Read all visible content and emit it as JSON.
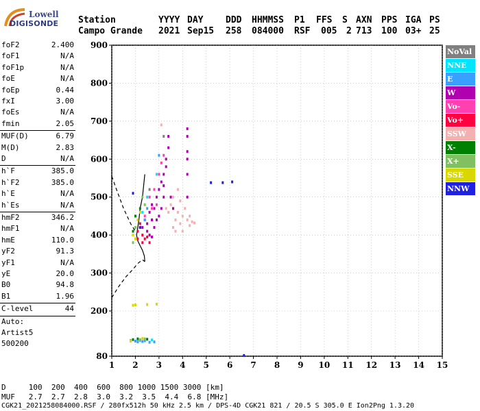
{
  "logo": {
    "line1": "Lowell",
    "line2": "DIGISONDE"
  },
  "header": {
    "labels": [
      "Station",
      "YYYY",
      "DAY",
      "DDD",
      "HHMMSS",
      "P1",
      "FFS",
      "S",
      "AXN",
      "PPS",
      "IGA",
      "PS"
    ],
    "values": [
      "Campo Grande",
      "2021",
      "Sep15",
      "258",
      "084000",
      "RSF",
      "005",
      "2",
      "713",
      "100",
      "03+",
      "25"
    ]
  },
  "params": [
    {
      "label": "foF2",
      "value": "2.400"
    },
    {
      "label": "foF1",
      "value": "N/A"
    },
    {
      "label": "foF1p",
      "value": "N/A"
    },
    {
      "label": "foE",
      "value": "N/A"
    },
    {
      "label": "foEp",
      "value": "0.44"
    },
    {
      "label": "fxI",
      "value": "3.00"
    },
    {
      "label": "foEs",
      "value": "N/A"
    },
    {
      "label": "fmin",
      "value": "2.05"
    },
    {
      "label": "MUF(D)",
      "value": "6.79",
      "sep": true
    },
    {
      "label": "M(D)",
      "value": "2.83"
    },
    {
      "label": "D",
      "value": "N/A"
    },
    {
      "label": "h`F",
      "value": "385.0",
      "sep": true
    },
    {
      "label": "h`F2",
      "value": "385.0"
    },
    {
      "label": "h`E",
      "value": "N/A"
    },
    {
      "label": "h`Es",
      "value": "N/A"
    },
    {
      "label": "hmF2",
      "value": "346.2",
      "sep": true
    },
    {
      "label": "hmF1",
      "value": "N/A"
    },
    {
      "label": "hmE",
      "value": "110.0"
    },
    {
      "label": "yF2",
      "value": "91.3"
    },
    {
      "label": "yF1",
      "value": "N/A"
    },
    {
      "label": "yE",
      "value": "20.0"
    },
    {
      "label": "B0",
      "value": "94.8"
    },
    {
      "label": "B1",
      "value": "1.96"
    },
    {
      "label": "C-level",
      "value": "44",
      "sep": true
    },
    {
      "label": "Auto:",
      "value": "",
      "sep": true
    },
    {
      "label": "Artist5",
      "value": ""
    },
    {
      "label": "500200",
      "value": ""
    }
  ],
  "legend": [
    {
      "label": "NoVal",
      "color": "#808080"
    },
    {
      "label": "NNE",
      "color": "#00e5ff"
    },
    {
      "label": "E",
      "color": "#3aa0ff"
    },
    {
      "label": "W",
      "color": "#b000b0"
    },
    {
      "label": "Vo-",
      "color": "#ff40b0"
    },
    {
      "label": "Vo+",
      "color": "#ff0040"
    },
    {
      "label": "SSW",
      "color": "#f4b0b0"
    },
    {
      "label": "X-",
      "color": "#008000"
    },
    {
      "label": "X+",
      "color": "#80c060"
    },
    {
      "label": "SSE",
      "color": "#d8d800"
    },
    {
      "label": "NNW",
      "color": "#2020e0"
    }
  ],
  "footer": {
    "line1": "D     100  200  400  600  800 1000 1500 3000 [km]",
    "line2": "MUF   2.7  2.7  2.8  3.0  3.2  3.5  4.4  6.8 [MHz]",
    "line3": "CGK21_2021258084000.RSF / 280fx512h 50 kHz 2.5 km / DPS-4D CGK21 821 / 20.5 S 305.0 E Ion2Png 1.3.20"
  },
  "chart_data": {
    "type": "scatter",
    "title": "",
    "xlabel": "",
    "ylabel": "",
    "xlim": [
      1,
      15
    ],
    "ylim": [
      80,
      900
    ],
    "xticks": [
      1,
      2,
      3,
      4,
      5,
      6,
      7,
      8,
      9,
      10,
      11,
      12,
      13,
      14,
      15
    ],
    "yticks": [
      80,
      200,
      300,
      400,
      500,
      600,
      700,
      800,
      900
    ],
    "grid": true,
    "legend_position": "right",
    "series": [
      {
        "name": "SSW",
        "color": "#f4b0b0",
        "points": [
          [
            3.6,
            420
          ],
          [
            3.7,
            440
          ],
          [
            3.8,
            460
          ],
          [
            3.9,
            430
          ],
          [
            4.0,
            450
          ],
          [
            4.1,
            470
          ],
          [
            4.2,
            440
          ],
          [
            4.3,
            425
          ],
          [
            4.4,
            435
          ],
          [
            3.5,
            480
          ],
          [
            3.6,
            500
          ],
          [
            3.9,
            490
          ],
          [
            4.0,
            410
          ],
          [
            4.3,
            450
          ],
          [
            3.4,
            460
          ],
          [
            3.7,
            410
          ],
          [
            4.5,
            432
          ],
          [
            3.1,
            690
          ],
          [
            3.3,
            470
          ],
          [
            3.8,
            520
          ]
        ]
      },
      {
        "name": "W",
        "color": "#b000b0",
        "points": [
          [
            2.3,
            420
          ],
          [
            2.4,
            440
          ],
          [
            2.5,
            430
          ],
          [
            2.6,
            460
          ],
          [
            2.7,
            480
          ],
          [
            2.8,
            470
          ],
          [
            2.9,
            500
          ],
          [
            3.0,
            520
          ],
          [
            3.1,
            540
          ],
          [
            3.2,
            560
          ],
          [
            3.3,
            600
          ],
          [
            3.4,
            630
          ],
          [
            3.4,
            660
          ],
          [
            3.3,
            580
          ],
          [
            3.2,
            500
          ],
          [
            3.0,
            450
          ],
          [
            2.8,
            420
          ],
          [
            2.6,
            400
          ],
          [
            3.1,
            470
          ],
          [
            2.9,
            440
          ],
          [
            3.2,
            530
          ],
          [
            2.7,
            440
          ],
          [
            4.2,
            680
          ],
          [
            4.2,
            660
          ],
          [
            4.2,
            620
          ],
          [
            4.2,
            600
          ],
          [
            4.2,
            560
          ],
          [
            4.2,
            500
          ],
          [
            3.5,
            500
          ],
          [
            3.6,
            470
          ],
          [
            2.5,
            410
          ],
          [
            2.7,
            395
          ]
        ]
      },
      {
        "name": "Vo+",
        "color": "#ff0040",
        "points": [
          [
            2.1,
            410
          ],
          [
            2.2,
            420
          ],
          [
            2.3,
            400
          ],
          [
            2.4,
            390
          ],
          [
            2.2,
            430
          ],
          [
            2.3,
            380
          ],
          [
            2.5,
            395
          ],
          [
            2.1,
            390
          ],
          [
            2.6,
            380
          ]
        ]
      },
      {
        "name": "Vo-",
        "color": "#ff40b0",
        "points": [
          [
            2.4,
            450
          ],
          [
            2.6,
            500
          ],
          [
            2.8,
            520
          ],
          [
            3.0,
            560
          ],
          [
            3.2,
            610
          ],
          [
            2.9,
            480
          ],
          [
            3.1,
            590
          ],
          [
            2.7,
            470
          ]
        ]
      },
      {
        "name": "E",
        "color": "#3aa0ff",
        "points": [
          [
            2.0,
            120
          ],
          [
            2.1,
            118
          ],
          [
            2.2,
            122
          ],
          [
            2.3,
            119
          ],
          [
            2.4,
            121
          ],
          [
            2.6,
            117
          ],
          [
            2.8,
            118
          ],
          [
            2.4,
            440
          ],
          [
            2.5,
            470
          ],
          [
            3.0,
            610
          ]
        ]
      },
      {
        "name": "NNE",
        "color": "#00e5ff",
        "points": [
          [
            2.5,
            500
          ],
          [
            2.9,
            560
          ],
          [
            2.3,
            460
          ],
          [
            2.7,
            123
          ]
        ]
      },
      {
        "name": "X-",
        "color": "#008000",
        "points": [
          [
            2.0,
            450
          ],
          [
            2.2,
            470
          ],
          [
            1.9,
            410
          ],
          [
            1.9,
            124
          ],
          [
            2.1,
            126
          ],
          [
            2.5,
            125
          ]
        ]
      },
      {
        "name": "X+",
        "color": "#80c060",
        "points": [
          [
            1.9,
            380
          ],
          [
            2.0,
            420
          ],
          [
            2.3,
            500
          ],
          [
            2.4,
            480
          ],
          [
            1.8,
            122
          ],
          [
            2.2,
            124
          ],
          [
            2.4,
            126
          ]
        ]
      },
      {
        "name": "SSE",
        "color": "#d8d800",
        "points": [
          [
            1.9,
            400
          ],
          [
            2.0,
            390
          ],
          [
            2.1,
            440
          ],
          [
            2.2,
            460
          ],
          [
            1.8,
            120
          ],
          [
            2.3,
            127
          ],
          [
            1.9,
            215
          ],
          [
            2.5,
            217
          ],
          [
            2.9,
            218
          ],
          [
            2.0,
            216
          ]
        ]
      },
      {
        "name": "NNW",
        "color": "#2020e0",
        "points": [
          [
            1.9,
            510
          ],
          [
            5.2,
            538
          ],
          [
            5.7,
            538
          ],
          [
            6.1,
            540
          ],
          [
            6.6,
            82
          ],
          [
            2.2,
            420
          ]
        ]
      },
      {
        "name": "NoVal",
        "color": "#808080",
        "points": [
          [
            3.2,
            660
          ],
          [
            2.6,
            520
          ]
        ]
      }
    ],
    "profile": {
      "solid": [
        [
          2.4,
          330
        ],
        [
          2.38,
          345
        ],
        [
          2.3,
          360
        ],
        [
          2.2,
          372
        ],
        [
          2.1,
          385
        ],
        [
          2.05,
          400
        ],
        [
          2.1,
          420
        ],
        [
          2.15,
          440
        ],
        [
          2.2,
          470
        ],
        [
          2.3,
          500
        ],
        [
          2.35,
          530
        ],
        [
          2.4,
          560
        ]
      ],
      "dashed": [
        [
          1.0,
          555
        ],
        [
          1.2,
          520
        ],
        [
          1.5,
          470
        ],
        [
          1.8,
          430
        ],
        [
          2.0,
          410
        ]
      ],
      "dashed2": [
        [
          1.0,
          235
        ],
        [
          1.3,
          265
        ],
        [
          1.6,
          290
        ],
        [
          1.9,
          310
        ],
        [
          2.1,
          325
        ],
        [
          2.3,
          335
        ],
        [
          2.4,
          330
        ]
      ]
    }
  }
}
